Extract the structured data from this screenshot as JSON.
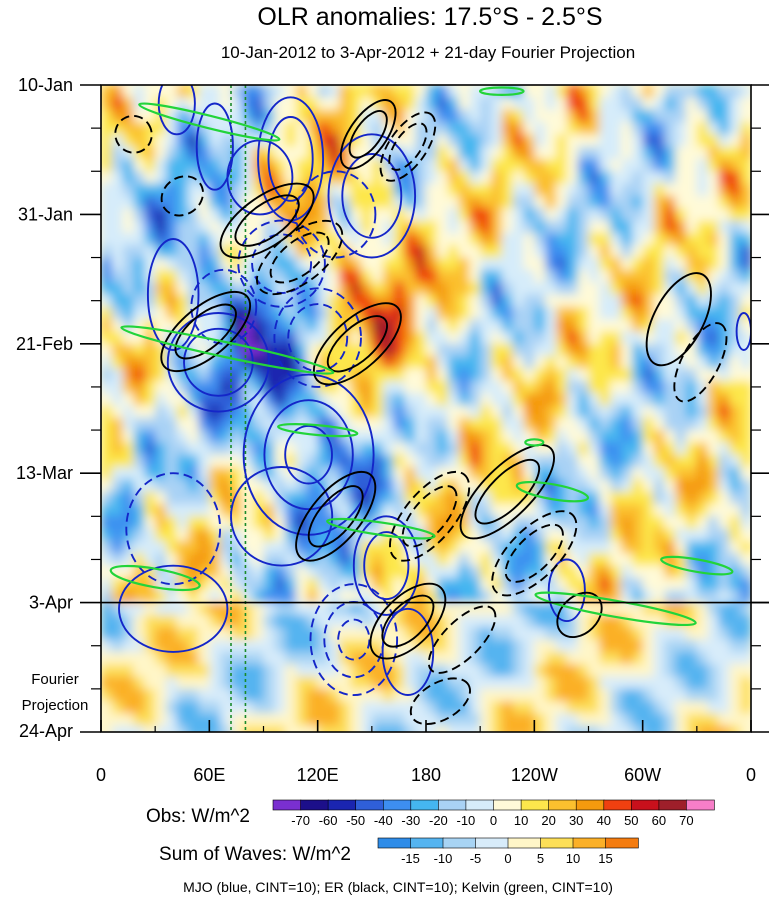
{
  "chart_data": {
    "type": "heatmap",
    "title": "OLR anomalies: 17.5°S - 2.5°S",
    "subtitle": "10-Jan-2012 to 3-Apr-2012 + 21-day Fourier Projection",
    "x_axis": {
      "ticks": [
        "0",
        "60E",
        "120E",
        "180",
        "120W",
        "60W",
        "0"
      ],
      "tick_values": [
        0,
        60,
        120,
        180,
        240,
        300,
        360
      ],
      "range": [
        0,
        360
      ]
    },
    "y_axis": {
      "ticks": [
        "10-Jan",
        "31-Jan",
        "21-Feb",
        "13-Mar",
        "3-Apr",
        "24-Apr"
      ],
      "tick_values": [
        0,
        21,
        42,
        63,
        84,
        105
      ],
      "range": [
        0,
        105
      ],
      "projection_start": 84
    },
    "fourier_label": [
      "Fourier",
      "Projection"
    ],
    "reference_lines_lon": [
      72,
      80
    ],
    "obs_colorbar": {
      "label": "Obs: W/m^2",
      "levels": [
        "-70",
        "-60",
        "-50",
        "-40",
        "-30",
        "-20",
        "-10",
        "0",
        "10",
        "20",
        "30",
        "40",
        "50",
        "60",
        "70"
      ],
      "colors": [
        "#7a2fd0",
        "#1c0f8a",
        "#1a25b0",
        "#2f5fd8",
        "#3d8ef0",
        "#45b6f0",
        "#a9d2f5",
        "#d6ecfa",
        "#fffad8",
        "#fde74c",
        "#fbc02e",
        "#f59a0e",
        "#f04010",
        "#c8101c",
        "#9e1f2a",
        "#f77ec8"
      ]
    },
    "waves_colorbar": {
      "label": "Sum of Waves: W/m^2",
      "levels": [
        "-15",
        "-10",
        "-5",
        "0",
        "5",
        "10",
        "15"
      ],
      "colors": [
        "#2e8ce8",
        "#55b4f0",
        "#a8d4f4",
        "#d8ecfa",
        "#fff6c8",
        "#fddf58",
        "#fbb028",
        "#f47c10"
      ]
    },
    "footer": "MJO (blue, CINT=10); ER (black, CINT=10); Kelvin (green, CINT=10)",
    "wave_contours": [
      {
        "wave": "MJO",
        "color": "#1426c8",
        "lon": 42,
        "day": 3,
        "dlon": 10,
        "dday": 5,
        "angle": 0,
        "rings": 1,
        "dashed": false
      },
      {
        "wave": "MJO",
        "color": "#1426c8",
        "lon": 63,
        "day": 10,
        "dlon": 10,
        "dday": 7,
        "angle": 0,
        "rings": 1,
        "dashed": false
      },
      {
        "wave": "MJO",
        "color": "#1426c8",
        "lon": 88,
        "day": 15,
        "dlon": 18,
        "dday": 6,
        "angle": 0,
        "rings": 1,
        "dashed": false
      },
      {
        "wave": "MJO",
        "color": "#1426c8",
        "lon": 105,
        "day": 12,
        "dlon": 18,
        "dday": 10,
        "angle": 0,
        "rings": 2,
        "dashed": false
      },
      {
        "wave": "MJO",
        "color": "#1426c8",
        "lon": 150,
        "day": 18,
        "dlon": 24,
        "dday": 10,
        "angle": 0,
        "rings": 2,
        "dashed": false
      },
      {
        "wave": "MJO",
        "color": "#1426c8",
        "lon": 130,
        "day": 21,
        "dlon": 22,
        "dday": 7,
        "angle": 0,
        "rings": 1,
        "dashed": true
      },
      {
        "wave": "MJO",
        "color": "#1426c8",
        "lon": 100,
        "day": 29,
        "dlon": 24,
        "dday": 7,
        "angle": 0,
        "rings": 2,
        "dashed": true
      },
      {
        "wave": "MJO",
        "color": "#1426c8",
        "lon": 68,
        "day": 36,
        "dlon": 18,
        "dday": 6,
        "angle": 0,
        "rings": 1,
        "dashed": true
      },
      {
        "wave": "MJO",
        "color": "#1426c8",
        "lon": 65,
        "day": 45,
        "dlon": 28,
        "dday": 8,
        "angle": 0,
        "rings": 2,
        "dashed": false
      },
      {
        "wave": "MJO",
        "color": "#1426c8",
        "lon": 40,
        "day": 34,
        "dlon": 14,
        "dday": 9,
        "angle": 0,
        "rings": 1,
        "dashed": false
      },
      {
        "wave": "MJO",
        "color": "#1426c8",
        "lon": 120,
        "day": 41,
        "dlon": 24,
        "dday": 8,
        "angle": 0,
        "rings": 2,
        "dashed": true
      },
      {
        "wave": "MJO",
        "color": "#1426c8",
        "lon": 115,
        "day": 60,
        "dlon": 36,
        "dday": 13,
        "angle": 0,
        "rings": 3,
        "dashed": false
      },
      {
        "wave": "MJO",
        "color": "#1426c8",
        "lon": 100,
        "day": 70,
        "dlon": 28,
        "dday": 8,
        "angle": 0,
        "rings": 1,
        "dashed": false
      },
      {
        "wave": "MJO",
        "color": "#1426c8",
        "lon": 158,
        "day": 78,
        "dlon": 18,
        "dday": 8,
        "angle": 0,
        "rings": 2,
        "dashed": false
      },
      {
        "wave": "MJO",
        "color": "#1426c8",
        "lon": 40,
        "day": 72,
        "dlon": 26,
        "dday": 9,
        "angle": 0,
        "rings": 1,
        "dashed": true
      },
      {
        "wave": "MJO",
        "color": "#1426c8",
        "lon": 40,
        "day": 85,
        "dlon": 30,
        "dday": 7,
        "angle": 0,
        "rings": 1,
        "dashed": false
      },
      {
        "wave": "MJO",
        "color": "#1426c8",
        "lon": 140,
        "day": 90,
        "dlon": 24,
        "dday": 9,
        "angle": 0,
        "rings": 3,
        "dashed": true
      },
      {
        "wave": "MJO",
        "color": "#1426c8",
        "lon": 170,
        "day": 92,
        "dlon": 14,
        "dday": 7,
        "angle": 0,
        "rings": 1,
        "dashed": false
      },
      {
        "wave": "MJO",
        "color": "#1426c8",
        "lon": 258,
        "day": 82,
        "dlon": 10,
        "dday": 5,
        "angle": 0,
        "rings": 1,
        "dashed": false
      },
      {
        "wave": "MJO",
        "color": "#1426c8",
        "lon": 356,
        "day": 40,
        "dlon": 4,
        "dday": 3,
        "angle": 0,
        "rings": 1,
        "dashed": false
      },
      {
        "wave": "ER",
        "color": "#000000",
        "lon": 18,
        "day": 8,
        "dlon": 10,
        "dday": 3,
        "angle": -35,
        "rings": 1,
        "dashed": true
      },
      {
        "wave": "ER",
        "color": "#000000",
        "lon": 45,
        "day": 18,
        "dlon": 12,
        "dday": 3,
        "angle": -35,
        "rings": 1,
        "dashed": true
      },
      {
        "wave": "ER",
        "color": "#000000",
        "lon": 92,
        "day": 22,
        "dlon": 30,
        "dday": 4,
        "angle": -35,
        "rings": 2,
        "dashed": false
      },
      {
        "wave": "ER",
        "color": "#000000",
        "lon": 148,
        "day": 8,
        "dlon": 22,
        "dday": 3,
        "angle": -55,
        "rings": 2,
        "dashed": false
      },
      {
        "wave": "ER",
        "color": "#000000",
        "lon": 170,
        "day": 10,
        "dlon": 22,
        "dday": 3,
        "angle": -55,
        "rings": 2,
        "dashed": true
      },
      {
        "wave": "ER",
        "color": "#000000",
        "lon": 110,
        "day": 28,
        "dlon": 28,
        "dday": 4,
        "angle": -38,
        "rings": 2,
        "dashed": true
      },
      {
        "wave": "ER",
        "color": "#000000",
        "lon": 58,
        "day": 40,
        "dlon": 30,
        "dday": 4,
        "angle": -40,
        "rings": 2,
        "dashed": false
      },
      {
        "wave": "ER",
        "color": "#000000",
        "lon": 142,
        "day": 42,
        "dlon": 30,
        "dday": 4,
        "angle": -42,
        "rings": 2,
        "dashed": false
      },
      {
        "wave": "ER",
        "color": "#000000",
        "lon": 130,
        "day": 70,
        "dlon": 30,
        "dday": 4,
        "angle": -50,
        "rings": 2,
        "dashed": false
      },
      {
        "wave": "ER",
        "color": "#000000",
        "lon": 182,
        "day": 70,
        "dlon": 30,
        "dday": 4,
        "angle": -50,
        "rings": 2,
        "dashed": true
      },
      {
        "wave": "ER",
        "color": "#000000",
        "lon": 225,
        "day": 66,
        "dlon": 34,
        "dday": 4,
        "angle": -45,
        "rings": 2,
        "dashed": false
      },
      {
        "wave": "ER",
        "color": "#000000",
        "lon": 240,
        "day": 76,
        "dlon": 30,
        "dday": 4,
        "angle": -45,
        "rings": 2,
        "dashed": true
      },
      {
        "wave": "ER",
        "color": "#000000",
        "lon": 170,
        "day": 87,
        "dlon": 26,
        "dday": 4,
        "angle": -45,
        "rings": 2,
        "dashed": false
      },
      {
        "wave": "ER",
        "color": "#000000",
        "lon": 200,
        "day": 90,
        "dlon": 24,
        "dday": 3,
        "angle": -45,
        "rings": 1,
        "dashed": true
      },
      {
        "wave": "ER",
        "color": "#000000",
        "lon": 188,
        "day": 100,
        "dlon": 18,
        "dday": 3,
        "angle": -30,
        "rings": 1,
        "dashed": true
      },
      {
        "wave": "ER",
        "color": "#000000",
        "lon": 320,
        "day": 38,
        "dlon": 28,
        "dday": 4,
        "angle": -62,
        "rings": 1,
        "dashed": false
      },
      {
        "wave": "ER",
        "color": "#000000",
        "lon": 332,
        "day": 45,
        "dlon": 24,
        "dday": 3,
        "angle": -62,
        "rings": 1,
        "dashed": true
      },
      {
        "wave": "ER",
        "color": "#000000",
        "lon": 265,
        "day": 86,
        "dlon": 14,
        "dday": 3,
        "angle": -45,
        "rings": 1,
        "dashed": false
      },
      {
        "wave": "Kelvin",
        "color": "#22d43a",
        "lon": 60,
        "day": 6,
        "dlon": 40,
        "dday": 1,
        "angle": 14,
        "rings": 1,
        "dashed": false
      },
      {
        "wave": "Kelvin",
        "color": "#22d43a",
        "lon": 70,
        "day": 43,
        "dlon": 60,
        "dday": 1.2,
        "angle": 12,
        "rings": 1,
        "dashed": false
      },
      {
        "wave": "Kelvin",
        "color": "#22d43a",
        "lon": 120,
        "day": 56,
        "dlon": 22,
        "dday": 0.8,
        "angle": 5,
        "rings": 1,
        "dashed": false
      },
      {
        "wave": "Kelvin",
        "color": "#22d43a",
        "lon": 155,
        "day": 72,
        "dlon": 30,
        "dday": 1,
        "angle": 8,
        "rings": 1,
        "dashed": false
      },
      {
        "wave": "Kelvin",
        "color": "#22d43a",
        "lon": 250,
        "day": 66,
        "dlon": 20,
        "dday": 1.2,
        "angle": 10,
        "rings": 1,
        "dashed": false
      },
      {
        "wave": "Kelvin",
        "color": "#22d43a",
        "lon": 30,
        "day": 80,
        "dlon": 25,
        "dday": 1.5,
        "angle": 10,
        "rings": 1,
        "dashed": false
      },
      {
        "wave": "Kelvin",
        "color": "#22d43a",
        "lon": 285,
        "day": 85,
        "dlon": 45,
        "dday": 1.3,
        "angle": 10,
        "rings": 1,
        "dashed": false
      },
      {
        "wave": "Kelvin",
        "color": "#22d43a",
        "lon": 330,
        "day": 78,
        "dlon": 20,
        "dday": 1,
        "angle": 10,
        "rings": 1,
        "dashed": false
      },
      {
        "wave": "Kelvin",
        "color": "#22d43a",
        "lon": 222,
        "day": 1,
        "dlon": 12,
        "dday": 0.6,
        "angle": 0,
        "rings": 1,
        "dashed": false
      },
      {
        "wave": "Kelvin",
        "color": "#22d43a",
        "lon": 240,
        "day": 58,
        "dlon": 5,
        "dday": 0.5,
        "angle": 0,
        "rings": 1,
        "dashed": false
      }
    ]
  }
}
